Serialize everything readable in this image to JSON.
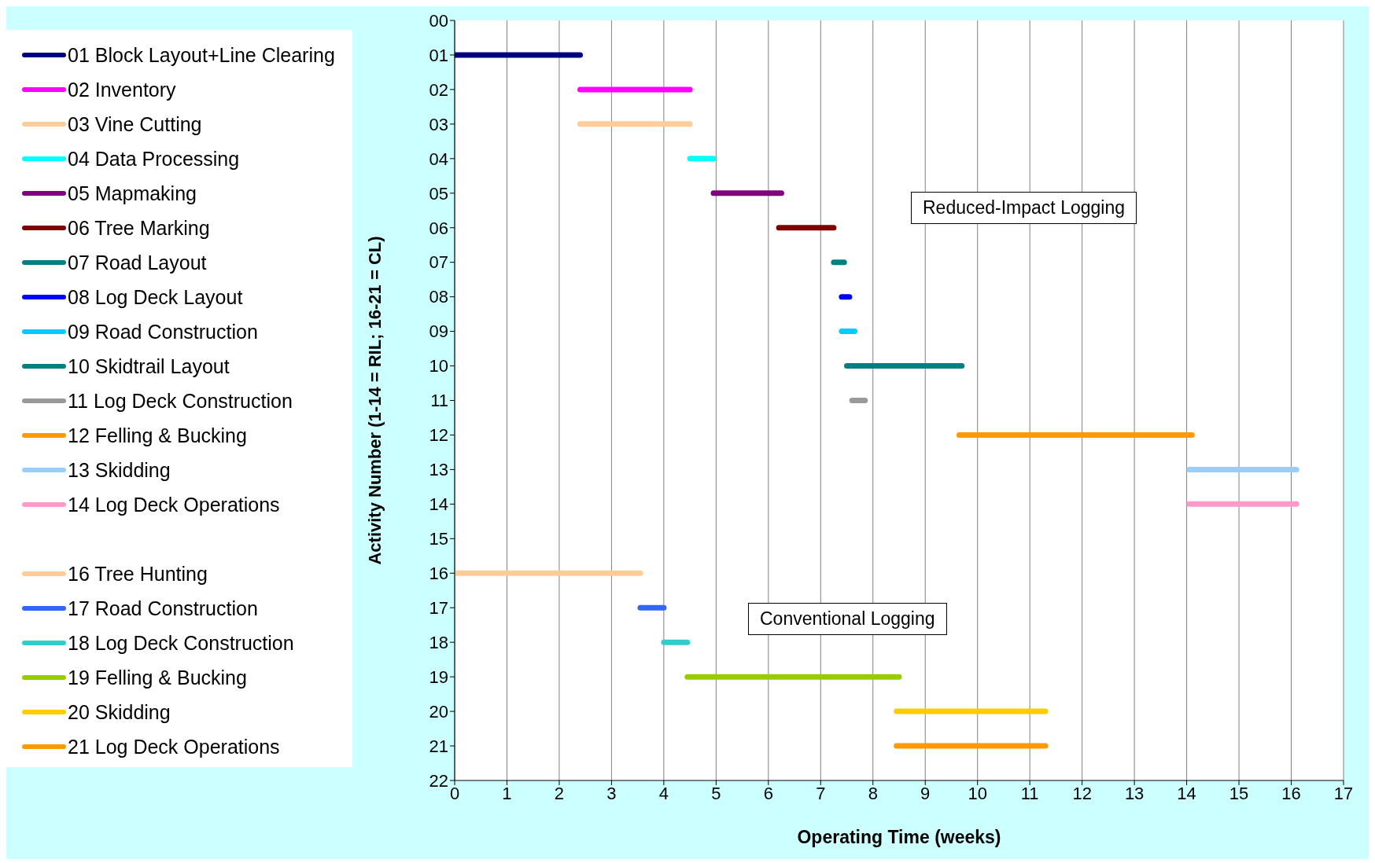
{
  "chart_data": {
    "type": "line",
    "xlabel": "Operating Time (weeks)",
    "ylabel": "Activity Number (1-14 = RIL; 16-21 = CL)",
    "xlim": [
      0,
      17
    ],
    "xticks": [
      0,
      1,
      2,
      3,
      4,
      5,
      6,
      7,
      8,
      9,
      10,
      11,
      12,
      13,
      14,
      15,
      16,
      17
    ],
    "ylim": [
      22,
      0
    ],
    "yticks": [
      {
        "value": 0,
        "label": "00"
      },
      {
        "value": 1,
        "label": "01"
      },
      {
        "value": 2,
        "label": "02"
      },
      {
        "value": 3,
        "label": "03"
      },
      {
        "value": 4,
        "label": "04"
      },
      {
        "value": 5,
        "label": "05"
      },
      {
        "value": 6,
        "label": "06"
      },
      {
        "value": 7,
        "label": "07"
      },
      {
        "value": 8,
        "label": "08"
      },
      {
        "value": 9,
        "label": "09"
      },
      {
        "value": 10,
        "label": "10"
      },
      {
        "value": 11,
        "label": "11"
      },
      {
        "value": 12,
        "label": "12"
      },
      {
        "value": 13,
        "label": "13"
      },
      {
        "value": 14,
        "label": "14"
      },
      {
        "value": 15,
        "label": "15"
      },
      {
        "value": 16,
        "label": "16"
      },
      {
        "value": 17,
        "label": "17"
      },
      {
        "value": 18,
        "label": "18"
      },
      {
        "value": 19,
        "label": "19"
      },
      {
        "value": 20,
        "label": "20"
      },
      {
        "value": 21,
        "label": "21"
      },
      {
        "value": 22,
        "label": "22"
      }
    ],
    "grid": "x",
    "legend": "left",
    "marker": "none",
    "line_style": "solid",
    "annotations": [
      "Reduced-Impact Logging",
      "Conventional Logging"
    ],
    "series": [
      {
        "name": "01 Block Layout+Line Clearing",
        "color": "#000080",
        "x": [
          0,
          2.4
        ],
        "values": [
          1,
          1
        ]
      },
      {
        "name": "02 Inventory",
        "color": "#ff00ff",
        "x": [
          2.4,
          4.5
        ],
        "values": [
          2,
          2
        ]
      },
      {
        "name": "03 Vine Cutting",
        "color": "#ffcc99",
        "x": [
          2.4,
          4.5
        ],
        "values": [
          3,
          3
        ]
      },
      {
        "name": "04 Data Processing",
        "color": "#00ffff",
        "x": [
          4.5,
          4.95
        ],
        "values": [
          4,
          4
        ]
      },
      {
        "name": "05 Mapmaking",
        "color": "#800080",
        "x": [
          4.95,
          6.25
        ],
        "values": [
          5,
          5
        ]
      },
      {
        "name": "06 Tree Marking",
        "color": "#800000",
        "x": [
          6.2,
          7.25
        ],
        "values": [
          6,
          6
        ]
      },
      {
        "name": "07 Road Layout",
        "color": "#008080",
        "x": [
          7.25,
          7.45
        ],
        "values": [
          7,
          7
        ]
      },
      {
        "name": "08 Log Deck Layout",
        "color": "#0000ff",
        "x": [
          7.4,
          7.55
        ],
        "values": [
          8,
          8
        ]
      },
      {
        "name": "09 Road Construction",
        "color": "#00ccff",
        "x": [
          7.4,
          7.65
        ],
        "values": [
          9,
          9
        ]
      },
      {
        "name": "10 Skidtrail Layout",
        "color": "#008080",
        "x": [
          7.5,
          9.7
        ],
        "values": [
          10,
          10
        ]
      },
      {
        "name": "11 Log Deck Construction",
        "color": "#999999",
        "x": [
          7.6,
          7.85
        ],
        "values": [
          11,
          11
        ]
      },
      {
        "name": "12 Felling & Bucking",
        "color": "#ff9900",
        "x": [
          9.65,
          14.1
        ],
        "values": [
          12,
          12
        ]
      },
      {
        "name": "13 Skidding",
        "color": "#99ccff",
        "x": [
          14.05,
          16.1
        ],
        "values": [
          13,
          13
        ]
      },
      {
        "name": "14 Log Deck Operations",
        "color": "#ff99cc",
        "x": [
          14.05,
          16.1
        ],
        "values": [
          14,
          14
        ]
      },
      {
        "name": "16 Tree Hunting",
        "color": "#ffcc99",
        "x": [
          0,
          3.55
        ],
        "values": [
          16,
          16
        ]
      },
      {
        "name": "17 Road Construction",
        "color": "#3366ff",
        "x": [
          3.55,
          4.0
        ],
        "values": [
          17,
          17
        ]
      },
      {
        "name": "18 Log Deck Construction",
        "color": "#33cccc",
        "x": [
          4.0,
          4.45
        ],
        "values": [
          18,
          18
        ]
      },
      {
        "name": "19 Felling & Bucking",
        "color": "#99cc00",
        "x": [
          4.45,
          8.5
        ],
        "values": [
          19,
          19
        ]
      },
      {
        "name": "20 Skidding",
        "color": "#ffcc00",
        "x": [
          8.45,
          11.3
        ],
        "values": [
          20,
          20
        ]
      },
      {
        "name": "21 Log Deck Operations",
        "color": "#ff9900",
        "x": [
          8.45,
          11.3
        ],
        "values": [
          21,
          21
        ]
      }
    ]
  }
}
